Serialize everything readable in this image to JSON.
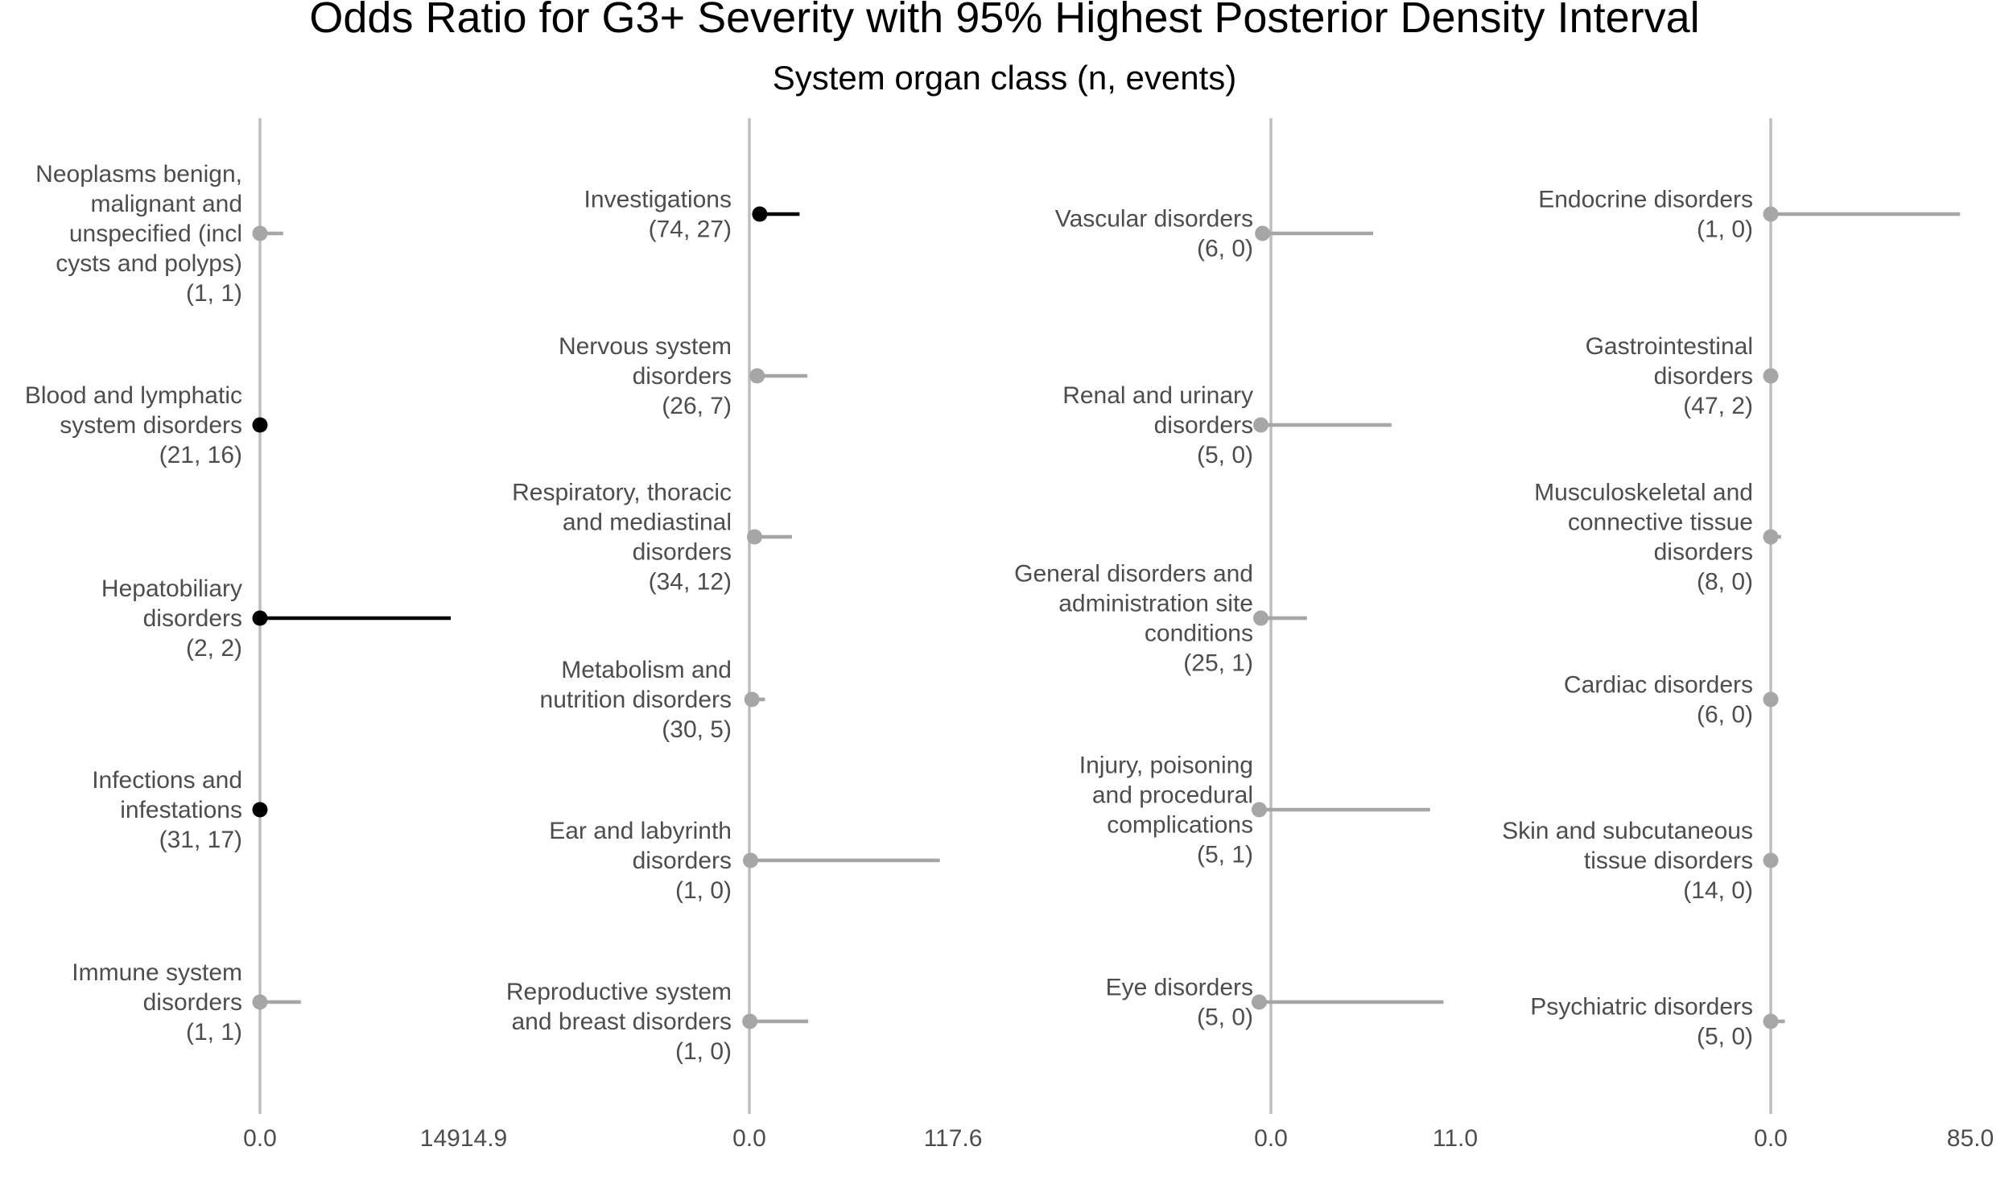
{
  "chart_data": {
    "type": "forest",
    "title": "Odds Ratio for G3+ Severity with 95% Highest Posterior Density Interval",
    "subtitle": "System organ class (n, events)",
    "colors": {
      "significant": "#000000",
      "nonsignificant": "#a6a6a6",
      "axis": "#bebebe",
      "text": "#4d4d4d"
    },
    "panels": [
      {
        "xlim": [
          0,
          14914.9
        ],
        "tick_labels": [
          "0.0",
          "14914.9"
        ],
        "rows": [
          {
            "label": [
              "Neoplasms benign,",
              "malignant and",
              "unspecified (incl",
              "cysts and polyps)"
            ],
            "counts": "(1, 1)",
            "or": 0,
            "lo": 0,
            "hi": 1700,
            "significant": false
          },
          {
            "label": [
              "Blood and lymphatic",
              "system disorders"
            ],
            "counts": "(21, 16)",
            "or": 0,
            "lo": 0,
            "hi": 0,
            "significant": true
          },
          {
            "label": [
              "Hepatobiliary",
              "disorders"
            ],
            "counts": "(2, 2)",
            "or": 0,
            "lo": 0,
            "hi": 13970,
            "significant": true
          },
          {
            "label": [
              "Infections and",
              "infestations"
            ],
            "counts": "(31, 17)",
            "or": 0,
            "lo": 0,
            "hi": 0,
            "significant": true
          },
          {
            "label": [
              "Immune system",
              "disorders"
            ],
            "counts": "(1, 1)",
            "or": 0,
            "lo": 0,
            "hi": 3000,
            "significant": false
          }
        ]
      },
      {
        "xlim": [
          0,
          117.6
        ],
        "tick_labels": [
          "0.0",
          "117.6"
        ],
        "rows": [
          {
            "label": [
              "Investigations"
            ],
            "counts": "(74, 27)",
            "or": 6,
            "lo": 6,
            "hi": 29,
            "significant": true
          },
          {
            "label": [
              "Nervous system",
              "disorders"
            ],
            "counts": "(26, 7)",
            "or": 4.5,
            "lo": 4.5,
            "hi": 33.5,
            "significant": false
          },
          {
            "label": [
              "Respiratory, thoracic",
              "and mediastinal",
              "disorders"
            ],
            "counts": "(34, 12)",
            "or": 3,
            "lo": 3,
            "hi": 24.6,
            "significant": false
          },
          {
            "label": [
              "Metabolism and",
              "nutrition disorders"
            ],
            "counts": "(30, 5)",
            "or": 1.5,
            "lo": 1.5,
            "hi": 9,
            "significant": false
          },
          {
            "label": [
              "Ear and labyrinth",
              "disorders"
            ],
            "counts": "(1, 0)",
            "or": 0.7,
            "lo": 0.7,
            "hi": 110,
            "significant": false
          },
          {
            "label": [
              "Reproductive system",
              "and breast disorders"
            ],
            "counts": "(1, 0)",
            "or": 0.3,
            "lo": 0.3,
            "hi": 34,
            "significant": false
          }
        ]
      },
      {
        "xlim": [
          0,
          11.0
        ],
        "tick_labels": [
          "0.0",
          "11.0"
        ],
        "rows": [
          {
            "label": [
              "Vascular disorders"
            ],
            "counts": "(6, 0)",
            "or": -0.5,
            "lo": -0.7,
            "hi": 6.1,
            "significant": false
          },
          {
            "label": [
              "Renal and urinary",
              "disorders"
            ],
            "counts": "(5, 0)",
            "or": -0.6,
            "lo": -0.6,
            "hi": 7.2,
            "significant": false
          },
          {
            "label": [
              "General disorders and",
              "administration site",
              "conditions"
            ],
            "counts": "(25, 1)",
            "or": -0.6,
            "lo": -0.6,
            "hi": 2.15,
            "significant": false
          },
          {
            "label": [
              "Injury, poisoning",
              "and procedural",
              "complications"
            ],
            "counts": "(5, 1)",
            "or": -0.7,
            "lo": -0.7,
            "hi": 9.5,
            "significant": false
          },
          {
            "label": [
              "Eye disorders"
            ],
            "counts": "(5, 0)",
            "or": -0.7,
            "lo": -0.7,
            "hi": 10.3,
            "significant": false
          }
        ]
      },
      {
        "xlim": [
          0,
          85.0
        ],
        "tick_labels": [
          "0.0",
          "85.0"
        ],
        "rows": [
          {
            "label": [
              "Endocrine disorders"
            ],
            "counts": "(1, 0)",
            "or": 0,
            "lo": 0,
            "hi": 80.6,
            "significant": false
          },
          {
            "label": [
              "Gastrointestinal",
              "disorders"
            ],
            "counts": "(47, 2)",
            "or": 0,
            "lo": 0,
            "hi": 0.3,
            "significant": false
          },
          {
            "label": [
              "Musculoskeletal and",
              "connective tissue",
              "disorders"
            ],
            "counts": "(8, 0)",
            "or": 0,
            "lo": 0,
            "hi": 4.4,
            "significant": false
          },
          {
            "label": [
              "Cardiac disorders"
            ],
            "counts": "(6, 0)",
            "or": 0,
            "lo": 0,
            "hi": 0.2,
            "significant": false
          },
          {
            "label": [
              "Skin and subcutaneous",
              "tissue disorders"
            ],
            "counts": "(14, 0)",
            "or": 0,
            "lo": 0,
            "hi": 0.2,
            "significant": false
          },
          {
            "label": [
              "Psychiatric disorders"
            ],
            "counts": "(5, 0)",
            "or": 0,
            "lo": 0,
            "hi": 6,
            "significant": false
          }
        ]
      }
    ]
  }
}
